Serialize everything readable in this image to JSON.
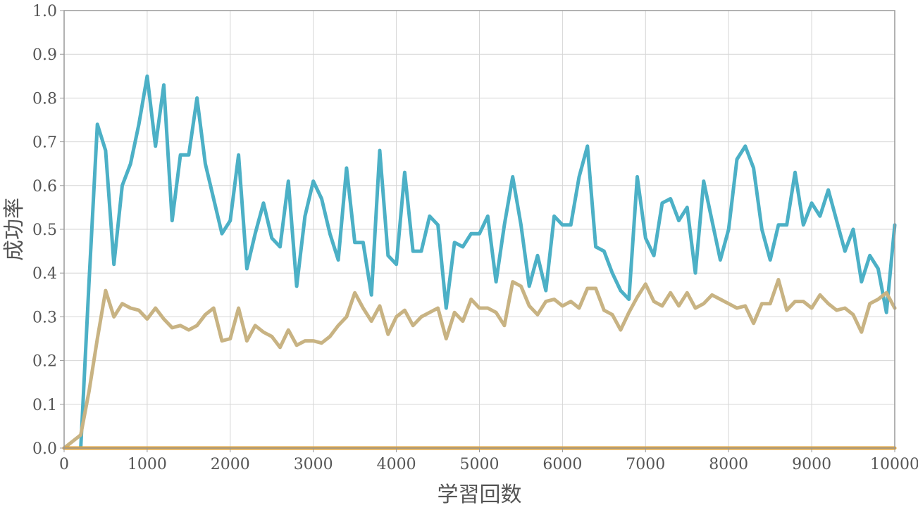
{
  "chart_data": {
    "type": "line",
    "title": "",
    "xlabel": "学習回数",
    "ylabel": "成功率",
    "xlim": [
      0,
      10000
    ],
    "ylim": [
      0,
      1.0
    ],
    "grid": true,
    "legend": "none",
    "x_ticks": [
      "0",
      "1000",
      "2000",
      "3000",
      "4000",
      "5000",
      "6000",
      "7000",
      "8000",
      "9000",
      "10000"
    ],
    "y_ticks": [
      "0.0",
      "0.1",
      "0.2",
      "0.3",
      "0.4",
      "0.5",
      "0.6",
      "0.7",
      "0.8",
      "0.9",
      "1.0"
    ],
    "x": [
      0,
      100,
      200,
      300,
      400,
      500,
      600,
      700,
      800,
      900,
      1000,
      1100,
      1200,
      1300,
      1400,
      1500,
      1600,
      1700,
      1800,
      1900,
      2000,
      2100,
      2200,
      2300,
      2400,
      2500,
      2600,
      2700,
      2800,
      2900,
      3000,
      3100,
      3200,
      3300,
      3400,
      3500,
      3600,
      3700,
      3800,
      3900,
      4000,
      4100,
      4200,
      4300,
      4400,
      4500,
      4600,
      4700,
      4800,
      4900,
      5000,
      5100,
      5200,
      5300,
      5400,
      5500,
      5600,
      5700,
      5800,
      5900,
      6000,
      6100,
      6200,
      6300,
      6400,
      6500,
      6600,
      6700,
      6800,
      6900,
      7000,
      7100,
      7200,
      7300,
      7400,
      7500,
      7600,
      7700,
      7800,
      7900,
      8000,
      8100,
      8200,
      8300,
      8400,
      8500,
      8600,
      8700,
      8800,
      8900,
      9000,
      9100,
      9200,
      9300,
      9400,
      9500,
      9600,
      9700,
      9800,
      9900,
      10000
    ],
    "series": [
      {
        "color": "#4cb0c6",
        "values": [
          0,
          0,
          0,
          0.38,
          0.74,
          0.68,
          0.42,
          0.6,
          0.65,
          0.74,
          0.85,
          0.69,
          0.83,
          0.52,
          0.67,
          0.67,
          0.8,
          0.65,
          0.57,
          0.49,
          0.52,
          0.67,
          0.41,
          0.49,
          0.56,
          0.48,
          0.46,
          0.61,
          0.37,
          0.53,
          0.61,
          0.57,
          0.49,
          0.43,
          0.64,
          0.47,
          0.47,
          0.35,
          0.68,
          0.44,
          0.42,
          0.63,
          0.45,
          0.45,
          0.53,
          0.51,
          0.32,
          0.47,
          0.46,
          0.49,
          0.49,
          0.53,
          0.38,
          0.51,
          0.62,
          0.51,
          0.37,
          0.44,
          0.36,
          0.53,
          0.51,
          0.51,
          0.62,
          0.69,
          0.46,
          0.45,
          0.4,
          0.36,
          0.34,
          0.62,
          0.48,
          0.44,
          0.56,
          0.57,
          0.52,
          0.55,
          0.4,
          0.61,
          0.52,
          0.43,
          0.5,
          0.66,
          0.69,
          0.64,
          0.5,
          0.43,
          0.51,
          0.51,
          0.63,
          0.51,
          0.56,
          0.53,
          0.59,
          0.52,
          0.45,
          0.5,
          0.38,
          0.44,
          0.41,
          0.31,
          0.51
        ]
      },
      {
        "color": "#c8b383",
        "values": [
          0,
          0.015,
          0.03,
          0.13,
          0.25,
          0.36,
          0.3,
          0.33,
          0.32,
          0.315,
          0.295,
          0.32,
          0.295,
          0.275,
          0.28,
          0.27,
          0.28,
          0.305,
          0.32,
          0.245,
          0.25,
          0.32,
          0.245,
          0.28,
          0.265,
          0.255,
          0.23,
          0.27,
          0.235,
          0.245,
          0.245,
          0.24,
          0.255,
          0.28,
          0.3,
          0.355,
          0.32,
          0.29,
          0.325,
          0.26,
          0.3,
          0.315,
          0.28,
          0.3,
          0.31,
          0.32,
          0.25,
          0.31,
          0.29,
          0.34,
          0.32,
          0.32,
          0.31,
          0.28,
          0.38,
          0.37,
          0.325,
          0.305,
          0.335,
          0.34,
          0.325,
          0.335,
          0.32,
          0.365,
          0.365,
          0.315,
          0.305,
          0.27,
          0.31,
          0.345,
          0.375,
          0.335,
          0.325,
          0.355,
          0.325,
          0.355,
          0.32,
          0.33,
          0.35,
          0.34,
          0.33,
          0.32,
          0.325,
          0.285,
          0.33,
          0.33,
          0.385,
          0.315,
          0.335,
          0.335,
          0.32,
          0.35,
          0.33,
          0.315,
          0.32,
          0.305,
          0.265,
          0.33,
          0.34,
          0.355,
          0.32
        ]
      },
      {
        "color": "#e0a33a",
        "values": [
          0,
          0,
          0,
          0,
          0,
          0,
          0,
          0,
          0,
          0,
          0,
          0,
          0,
          0,
          0,
          0,
          0,
          0,
          0,
          0,
          0,
          0,
          0,
          0,
          0,
          0,
          0,
          0,
          0,
          0,
          0,
          0,
          0,
          0,
          0,
          0,
          0,
          0,
          0,
          0,
          0,
          0,
          0,
          0,
          0,
          0,
          0,
          0,
          0,
          0,
          0,
          0,
          0,
          0,
          0,
          0,
          0,
          0,
          0,
          0,
          0,
          0,
          0,
          0,
          0,
          0,
          0,
          0,
          0,
          0,
          0,
          0,
          0,
          0,
          0,
          0,
          0,
          0,
          0,
          0,
          0,
          0,
          0,
          0,
          0,
          0,
          0,
          0,
          0,
          0,
          0,
          0,
          0,
          0,
          0,
          0,
          0,
          0,
          0,
          0,
          0
        ]
      }
    ]
  }
}
